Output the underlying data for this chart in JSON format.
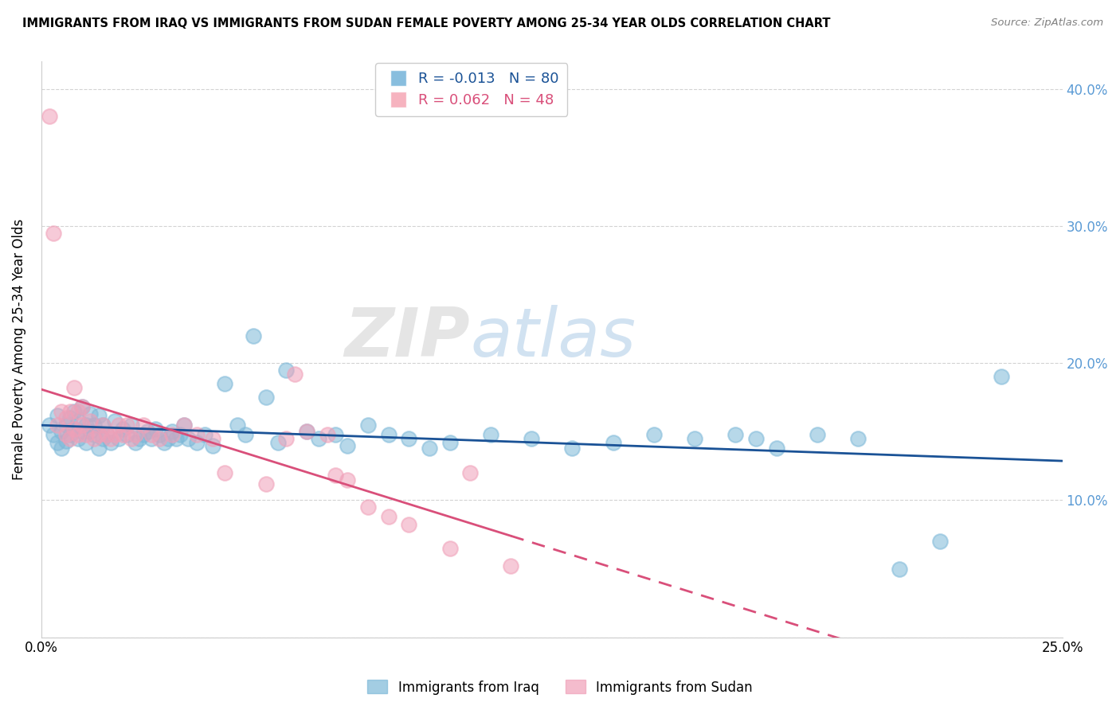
{
  "title": "IMMIGRANTS FROM IRAQ VS IMMIGRANTS FROM SUDAN FEMALE POVERTY AMONG 25-34 YEAR OLDS CORRELATION CHART",
  "source": "Source: ZipAtlas.com",
  "ylabel": "Female Poverty Among 25-34 Year Olds",
  "xlim": [
    0.0,
    0.25
  ],
  "ylim": [
    0.0,
    0.42
  ],
  "iraq_color": "#7db8d8",
  "sudan_color": "#f0a0b8",
  "trendline_iraq_color": "#1a5296",
  "trendline_sudan_color": "#d94f7a",
  "right_axis_color": "#5b9bd5",
  "legend_iraq_R": "-0.013",
  "legend_iraq_N": "80",
  "legend_sudan_R": "0.062",
  "legend_sudan_N": "48",
  "legend_iraq_color": "#6baed6",
  "legend_sudan_color": "#f4a0b0",
  "watermark_zip": "ZIP",
  "watermark_atlas": "atlas",
  "iraq_x": [
    0.002,
    0.003,
    0.004,
    0.004,
    0.005,
    0.005,
    0.006,
    0.006,
    0.007,
    0.007,
    0.008,
    0.008,
    0.009,
    0.009,
    0.01,
    0.01,
    0.011,
    0.011,
    0.012,
    0.012,
    0.013,
    0.013,
    0.014,
    0.014,
    0.015,
    0.015,
    0.016,
    0.017,
    0.018,
    0.019,
    0.02,
    0.021,
    0.022,
    0.023,
    0.024,
    0.025,
    0.026,
    0.027,
    0.028,
    0.029,
    0.03,
    0.031,
    0.032,
    0.033,
    0.034,
    0.035,
    0.036,
    0.038,
    0.04,
    0.042,
    0.045,
    0.048,
    0.05,
    0.052,
    0.055,
    0.058,
    0.06,
    0.065,
    0.068,
    0.072,
    0.075,
    0.08,
    0.085,
    0.09,
    0.095,
    0.1,
    0.11,
    0.12,
    0.13,
    0.14,
    0.15,
    0.16,
    0.17,
    0.175,
    0.18,
    0.19,
    0.2,
    0.21,
    0.22,
    0.235
  ],
  "iraq_y": [
    0.155,
    0.148,
    0.142,
    0.162,
    0.15,
    0.138,
    0.155,
    0.143,
    0.148,
    0.16,
    0.152,
    0.165,
    0.145,
    0.158,
    0.15,
    0.168,
    0.155,
    0.142,
    0.15,
    0.163,
    0.148,
    0.155,
    0.138,
    0.162,
    0.145,
    0.155,
    0.148,
    0.142,
    0.158,
    0.145,
    0.152,
    0.148,
    0.155,
    0.142,
    0.145,
    0.148,
    0.15,
    0.145,
    0.152,
    0.148,
    0.142,
    0.145,
    0.15,
    0.145,
    0.148,
    0.155,
    0.145,
    0.142,
    0.148,
    0.14,
    0.185,
    0.155,
    0.148,
    0.22,
    0.175,
    0.142,
    0.195,
    0.15,
    0.145,
    0.148,
    0.14,
    0.155,
    0.148,
    0.145,
    0.138,
    0.142,
    0.148,
    0.145,
    0.138,
    0.142,
    0.148,
    0.145,
    0.148,
    0.145,
    0.138,
    0.148,
    0.145,
    0.05,
    0.07,
    0.19
  ],
  "sudan_x": [
    0.002,
    0.003,
    0.004,
    0.005,
    0.006,
    0.006,
    0.007,
    0.007,
    0.008,
    0.008,
    0.009,
    0.009,
    0.01,
    0.01,
    0.011,
    0.012,
    0.013,
    0.014,
    0.015,
    0.016,
    0.017,
    0.018,
    0.019,
    0.02,
    0.021,
    0.022,
    0.023,
    0.025,
    0.027,
    0.029,
    0.032,
    0.035,
    0.038,
    0.042,
    0.045,
    0.055,
    0.06,
    0.062,
    0.065,
    0.07,
    0.072,
    0.075,
    0.08,
    0.085,
    0.09,
    0.1,
    0.105,
    0.115
  ],
  "sudan_y": [
    0.38,
    0.295,
    0.155,
    0.165,
    0.148,
    0.16,
    0.145,
    0.165,
    0.152,
    0.182,
    0.148,
    0.165,
    0.155,
    0.168,
    0.148,
    0.158,
    0.145,
    0.148,
    0.155,
    0.148,
    0.145,
    0.148,
    0.155,
    0.148,
    0.155,
    0.145,
    0.148,
    0.155,
    0.148,
    0.145,
    0.148,
    0.155,
    0.148,
    0.145,
    0.12,
    0.112,
    0.145,
    0.192,
    0.15,
    0.148,
    0.118,
    0.115,
    0.095,
    0.088,
    0.082,
    0.065,
    0.12,
    0.052
  ]
}
